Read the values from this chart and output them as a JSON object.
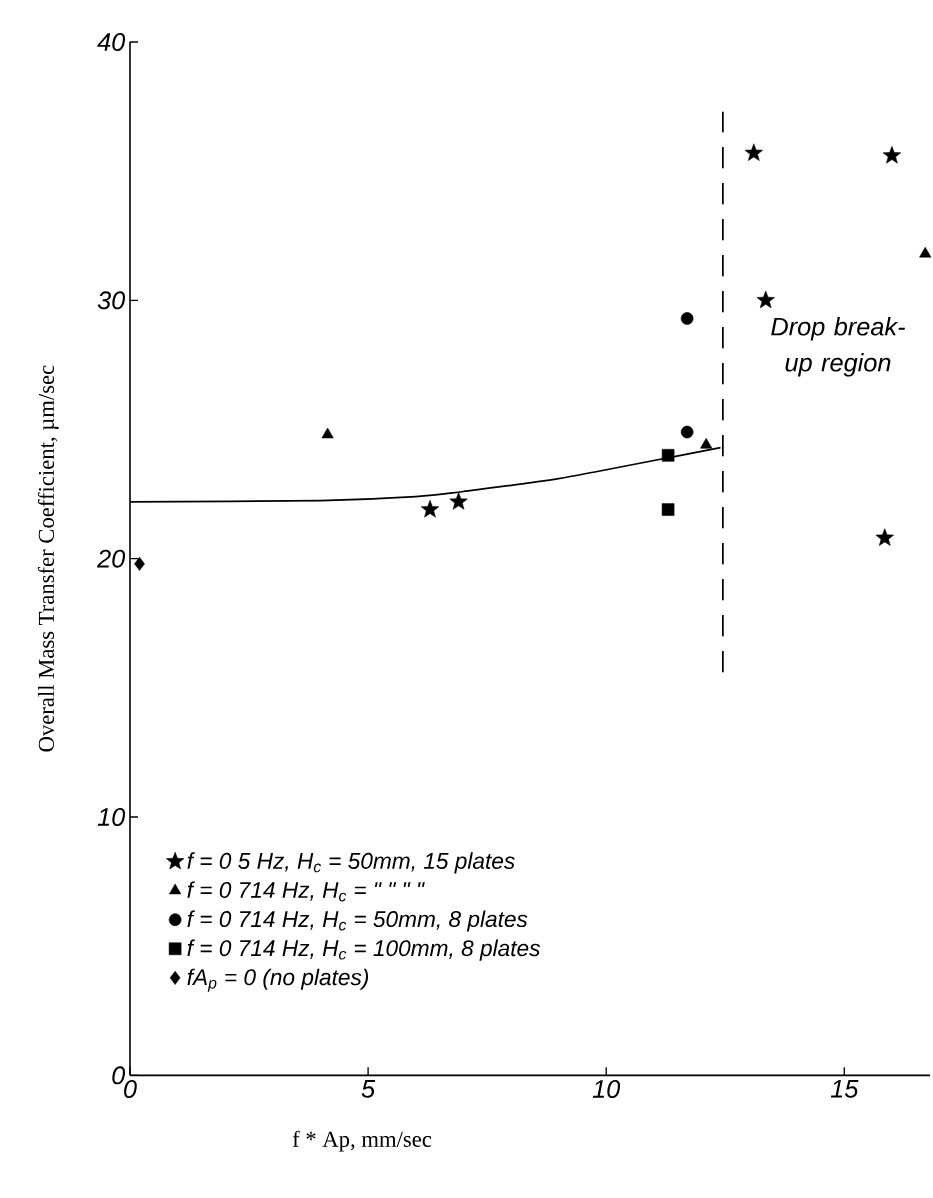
{
  "chart_data": {
    "type": "scatter",
    "xlabel": "f * Ap, mm/sec",
    "ylabel": "Overall Mass Transfer Coefficient, µm/sec",
    "xlim": [
      0,
      16.8
    ],
    "ylim": [
      0,
      40
    ],
    "xticks": [
      0,
      5,
      10,
      15
    ],
    "yticks": [
      0,
      10,
      20,
      30,
      40
    ],
    "legend": "bottom left",
    "grid": false,
    "annotations": [
      "Drop break-up region"
    ],
    "series": [
      {
        "name": "f =  0 5 Hz, H$_{c}$ = 50mm, 15 plates",
        "marker": "star",
        "color": "#000000",
        "x": [
          6.3,
          6.9,
          13.1,
          13.35,
          16.0,
          15.85
        ],
        "values": [
          21.9,
          22.2,
          35.7,
          30.0,
          35.6,
          20.8
        ]
      },
      {
        "name": "f =  0 714 Hz, H$_{c}$ =  \"   \"   \"    \"",
        "marker": "triangle",
        "color": "#000000",
        "x": [
          4.15,
          12.1,
          16.7
        ],
        "values": [
          24.8,
          24.4,
          31.8
        ]
      },
      {
        "name": "f =  0 714 Hz, H$_{c}$ = 50mm, 8 plates",
        "marker": "circle",
        "color": "#000000",
        "x": [
          11.7,
          11.7
        ],
        "values": [
          29.3,
          24.9
        ]
      },
      {
        "name": "f =  0 714 Hz, H$_{c}$ = 100mm, 8 plates",
        "marker": "square",
        "color": "#000000",
        "x": [
          11.3,
          11.3
        ],
        "values": [
          24.0,
          21.9
        ]
      },
      {
        "name": "fA$_{p}$ = 0 (no plates)",
        "marker": "diamond",
        "color": "#000000",
        "x": [
          0.2
        ],
        "values": [
          19.8
        ]
      },
      {
        "type": "line",
        "marker": "none",
        "line_style": "solid",
        "color": "#000000",
        "x": [
          0,
          4,
          6,
          7,
          9,
          11,
          12.4
        ],
        "values": [
          22.2,
          22.25,
          22.4,
          22.6,
          23.1,
          23.8,
          24.3
        ]
      },
      {
        "type": "line",
        "marker": "none",
        "line_style": "dashed",
        "color": "#000000",
        "x": [
          12.45,
          12.45
        ],
        "values": [
          15.6,
          37.3
        ]
      }
    ]
  }
}
